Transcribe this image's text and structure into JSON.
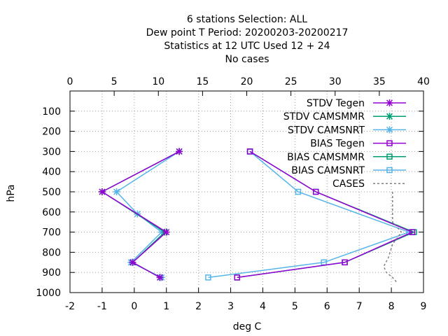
{
  "chart_data": {
    "type": "line",
    "title_lines": [
      "6 stations Selection: ALL",
      "Dew point T  Period: 20200203-20200217",
      "Statistics at 12 UTC  Used  12 + 24",
      "No cases"
    ],
    "xlabel": "deg C",
    "ylabel": "hPa",
    "xlim": [
      -2,
      9
    ],
    "x2lim": [
      0,
      40
    ],
    "ylim": [
      1000,
      0
    ],
    "x_ticks": [
      "-2",
      "-1",
      "0",
      "1",
      "2",
      "3",
      "4",
      "5",
      "6",
      "7",
      "8",
      "9"
    ],
    "x2_ticks": [
      "0",
      "5",
      "10",
      "15",
      "20",
      "25",
      "30",
      "35",
      "40"
    ],
    "y_ticks": [
      "100",
      "200",
      "300",
      "400",
      "500",
      "600",
      "700",
      "800",
      "900",
      "1000"
    ],
    "grid": true,
    "legend_position": "top-right",
    "series": [
      {
        "name": "STDV Tegen",
        "color": "#9400d3",
        "marker": "x",
        "points": [
          [
            1.4,
            300
          ],
          [
            -1.0,
            500
          ],
          [
            1.0,
            700
          ],
          [
            -0.05,
            850
          ],
          [
            0.8,
            925
          ]
        ]
      },
      {
        "name": "STDV CAMSMMR",
        "color": "#009e73",
        "marker": "x",
        "points": [
          [
            1.4,
            300
          ],
          [
            -1.0,
            500
          ],
          [
            0.95,
            700
          ],
          [
            -0.05,
            850
          ],
          [
            0.8,
            925
          ]
        ]
      },
      {
        "name": "STDV CAMSNRT",
        "color": "#56b4e9",
        "marker": "x",
        "points": [
          [
            1.4,
            300
          ],
          [
            -0.55,
            500
          ],
          [
            0.1,
            610
          ],
          [
            0.85,
            700
          ],
          [
            -0.1,
            850
          ],
          [
            0.85,
            925
          ]
        ]
      },
      {
        "name": "BIAS Tegen",
        "color": "#9400d3",
        "marker": "square",
        "points": [
          [
            3.6,
            300
          ],
          [
            5.65,
            500
          ],
          [
            8.65,
            700
          ],
          [
            6.55,
            850
          ],
          [
            3.2,
            925
          ]
        ]
      },
      {
        "name": "BIAS CAMSMMR",
        "color": "#009e73",
        "marker": "square",
        "points": [
          [
            3.6,
            300
          ],
          [
            5.65,
            500
          ],
          [
            8.7,
            700
          ],
          [
            6.55,
            850
          ],
          [
            3.2,
            925
          ]
        ]
      },
      {
        "name": "BIAS CAMSNRT",
        "color": "#56b4e9",
        "marker": "square",
        "points": [
          [
            3.6,
            300
          ],
          [
            5.1,
            500
          ],
          [
            8.55,
            700
          ],
          [
            5.9,
            850
          ],
          [
            2.3,
            925
          ]
        ]
      },
      {
        "name": "CASES",
        "color": "#808080",
        "marker": "none",
        "dashed": true,
        "axis": "x2",
        "points": [
          [
            36.5,
            500
          ],
          [
            36.5,
            600
          ],
          [
            36.5,
            650
          ],
          [
            37.5,
            700
          ],
          [
            36.5,
            760
          ],
          [
            36.0,
            830
          ],
          [
            35.5,
            870
          ],
          [
            35.8,
            900
          ],
          [
            36.5,
            925
          ],
          [
            37.0,
            950
          ]
        ]
      }
    ]
  }
}
